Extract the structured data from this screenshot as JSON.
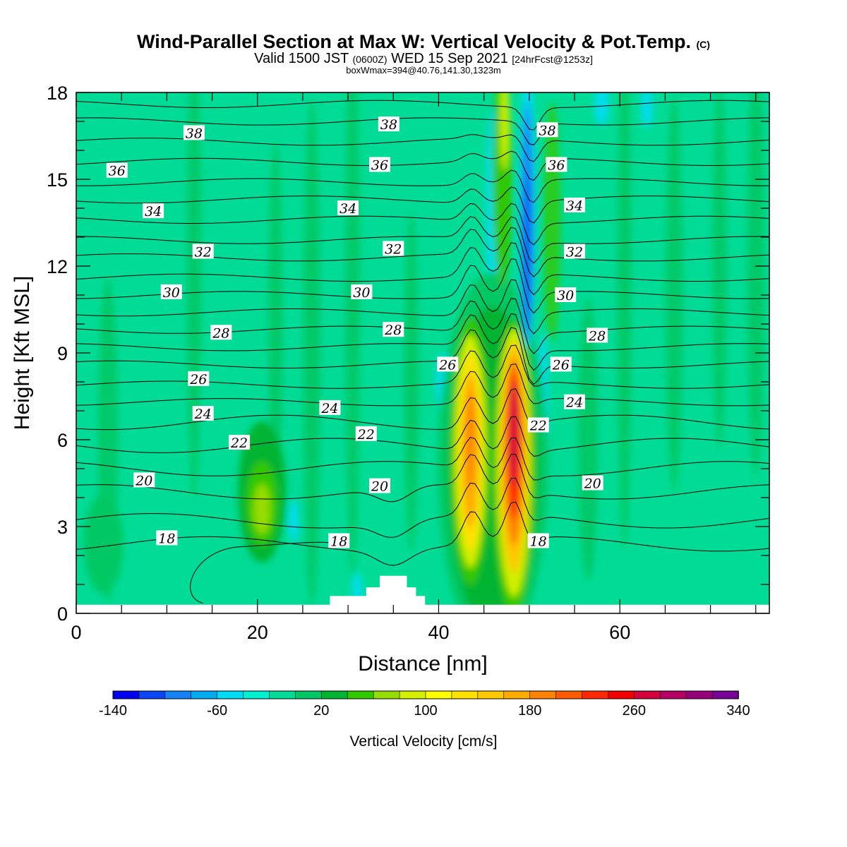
{
  "title": {
    "main": "Wind-Parallel Section at Max W: Vertical Velocity & Pot.Temp.",
    "copyright": "(C)",
    "valid_prefix": "Valid 1500 JST",
    "valid_utc": "(0600Z)",
    "valid_date": "WED 15 Sep 2021",
    "forecast": "[24hrFcst@1253z]",
    "boxwmax": "boxWmax=394@40.76,141.30,1323m"
  },
  "colors": {
    "background_green": "#00dc96",
    "terrain": "#ffffff",
    "contour": "#000000"
  },
  "chart_data": {
    "type": "heatmap",
    "xlabel": "Distance [nm]",
    "ylabel": "Height [Kft MSL]",
    "xlim": [
      0,
      76.5
    ],
    "ylim": [
      0,
      18
    ],
    "x_ticks": [
      "0",
      "20",
      "40",
      "60"
    ],
    "y_ticks": [
      "0",
      "3",
      "6",
      "9",
      "12",
      "15",
      "18"
    ],
    "colorbar": {
      "label": "Vertical Velocity [cm/s]",
      "tick_labels": [
        "-140",
        "-60",
        "20",
        "100",
        "180",
        "260",
        "340"
      ],
      "colors": [
        "#0000f0",
        "#0a46f5",
        "#1482f5",
        "#00aaf0",
        "#00dcf5",
        "#00f0d2",
        "#00dc96",
        "#00c864",
        "#00b432",
        "#32c800",
        "#96dc00",
        "#d2f000",
        "#ffff00",
        "#ffe100",
        "#ffc800",
        "#ffaa00",
        "#ff8200",
        "#ff5a00",
        "#ff2800",
        "#f00000",
        "#d2003c",
        "#b40064",
        "#960078",
        "#780096"
      ]
    },
    "features": [
      {
        "name": "updraft-core-a",
        "x": 43.5,
        "y_range": [
          1.5,
          9.8
        ],
        "max_value": 220
      },
      {
        "name": "updraft-core-b",
        "x": 48.3,
        "y_range": [
          1.0,
          9.8
        ],
        "max_value": 320
      },
      {
        "name": "downdraft-column",
        "x": 49.8,
        "y_range": [
          9.0,
          18
        ],
        "min_value": -140
      },
      {
        "name": "weak-updraft",
        "x": 20.5,
        "y_range": [
          2.8,
          5.5
        ],
        "max_value": 90
      }
    ],
    "terrain_profile": [
      [
        0,
        0.3
      ],
      [
        28,
        0.3
      ],
      [
        28,
        0.6
      ],
      [
        32,
        0.6
      ],
      [
        32,
        0.9
      ],
      [
        33.5,
        0.9
      ],
      [
        33.5,
        1.3
      ],
      [
        36.5,
        1.3
      ],
      [
        36.5,
        0.9
      ],
      [
        37.5,
        0.9
      ],
      [
        37.5,
        0.6
      ],
      [
        38.5,
        0.6
      ],
      [
        38.5,
        0.3
      ],
      [
        76.5,
        0.3
      ]
    ],
    "theta_contour_labels": [
      {
        "text": "38",
        "x": 13,
        "y": 16.6
      },
      {
        "text": "38",
        "x": 34.5,
        "y": 16.9
      },
      {
        "text": "38",
        "x": 52,
        "y": 16.7
      },
      {
        "text": "36",
        "x": 4.5,
        "y": 15.3
      },
      {
        "text": "36",
        "x": 33.5,
        "y": 15.5
      },
      {
        "text": "36",
        "x": 53,
        "y": 15.5
      },
      {
        "text": "34",
        "x": 8.5,
        "y": 13.9
      },
      {
        "text": "34",
        "x": 30,
        "y": 14.0
      },
      {
        "text": "34",
        "x": 55,
        "y": 14.1
      },
      {
        "text": "32",
        "x": 14,
        "y": 12.5
      },
      {
        "text": "32",
        "x": 35,
        "y": 12.6
      },
      {
        "text": "32",
        "x": 55,
        "y": 12.5
      },
      {
        "text": "30",
        "x": 10.5,
        "y": 11.1
      },
      {
        "text": "30",
        "x": 31.5,
        "y": 11.1
      },
      {
        "text": "30",
        "x": 54,
        "y": 11.0
      },
      {
        "text": "28",
        "x": 16,
        "y": 9.7
      },
      {
        "text": "28",
        "x": 35,
        "y": 9.8
      },
      {
        "text": "28",
        "x": 57.5,
        "y": 9.6
      },
      {
        "text": "26",
        "x": 13.5,
        "y": 8.1
      },
      {
        "text": "26",
        "x": 41,
        "y": 8.6
      },
      {
        "text": "26",
        "x": 53.5,
        "y": 8.6
      },
      {
        "text": "24",
        "x": 14,
        "y": 6.9
      },
      {
        "text": "24",
        "x": 28,
        "y": 7.1
      },
      {
        "text": "24",
        "x": 55,
        "y": 7.3
      },
      {
        "text": "22",
        "x": 18,
        "y": 5.9
      },
      {
        "text": "22",
        "x": 32,
        "y": 6.2
      },
      {
        "text": "22",
        "x": 51,
        "y": 6.5
      },
      {
        "text": "20",
        "x": 7.5,
        "y": 4.6
      },
      {
        "text": "20",
        "x": 33.5,
        "y": 4.4
      },
      {
        "text": "20",
        "x": 57,
        "y": 4.5
      },
      {
        "text": "18",
        "x": 10,
        "y": 2.6
      },
      {
        "text": "18",
        "x": 29,
        "y": 2.5
      },
      {
        "text": "18",
        "x": 51,
        "y": 2.5
      }
    ]
  }
}
